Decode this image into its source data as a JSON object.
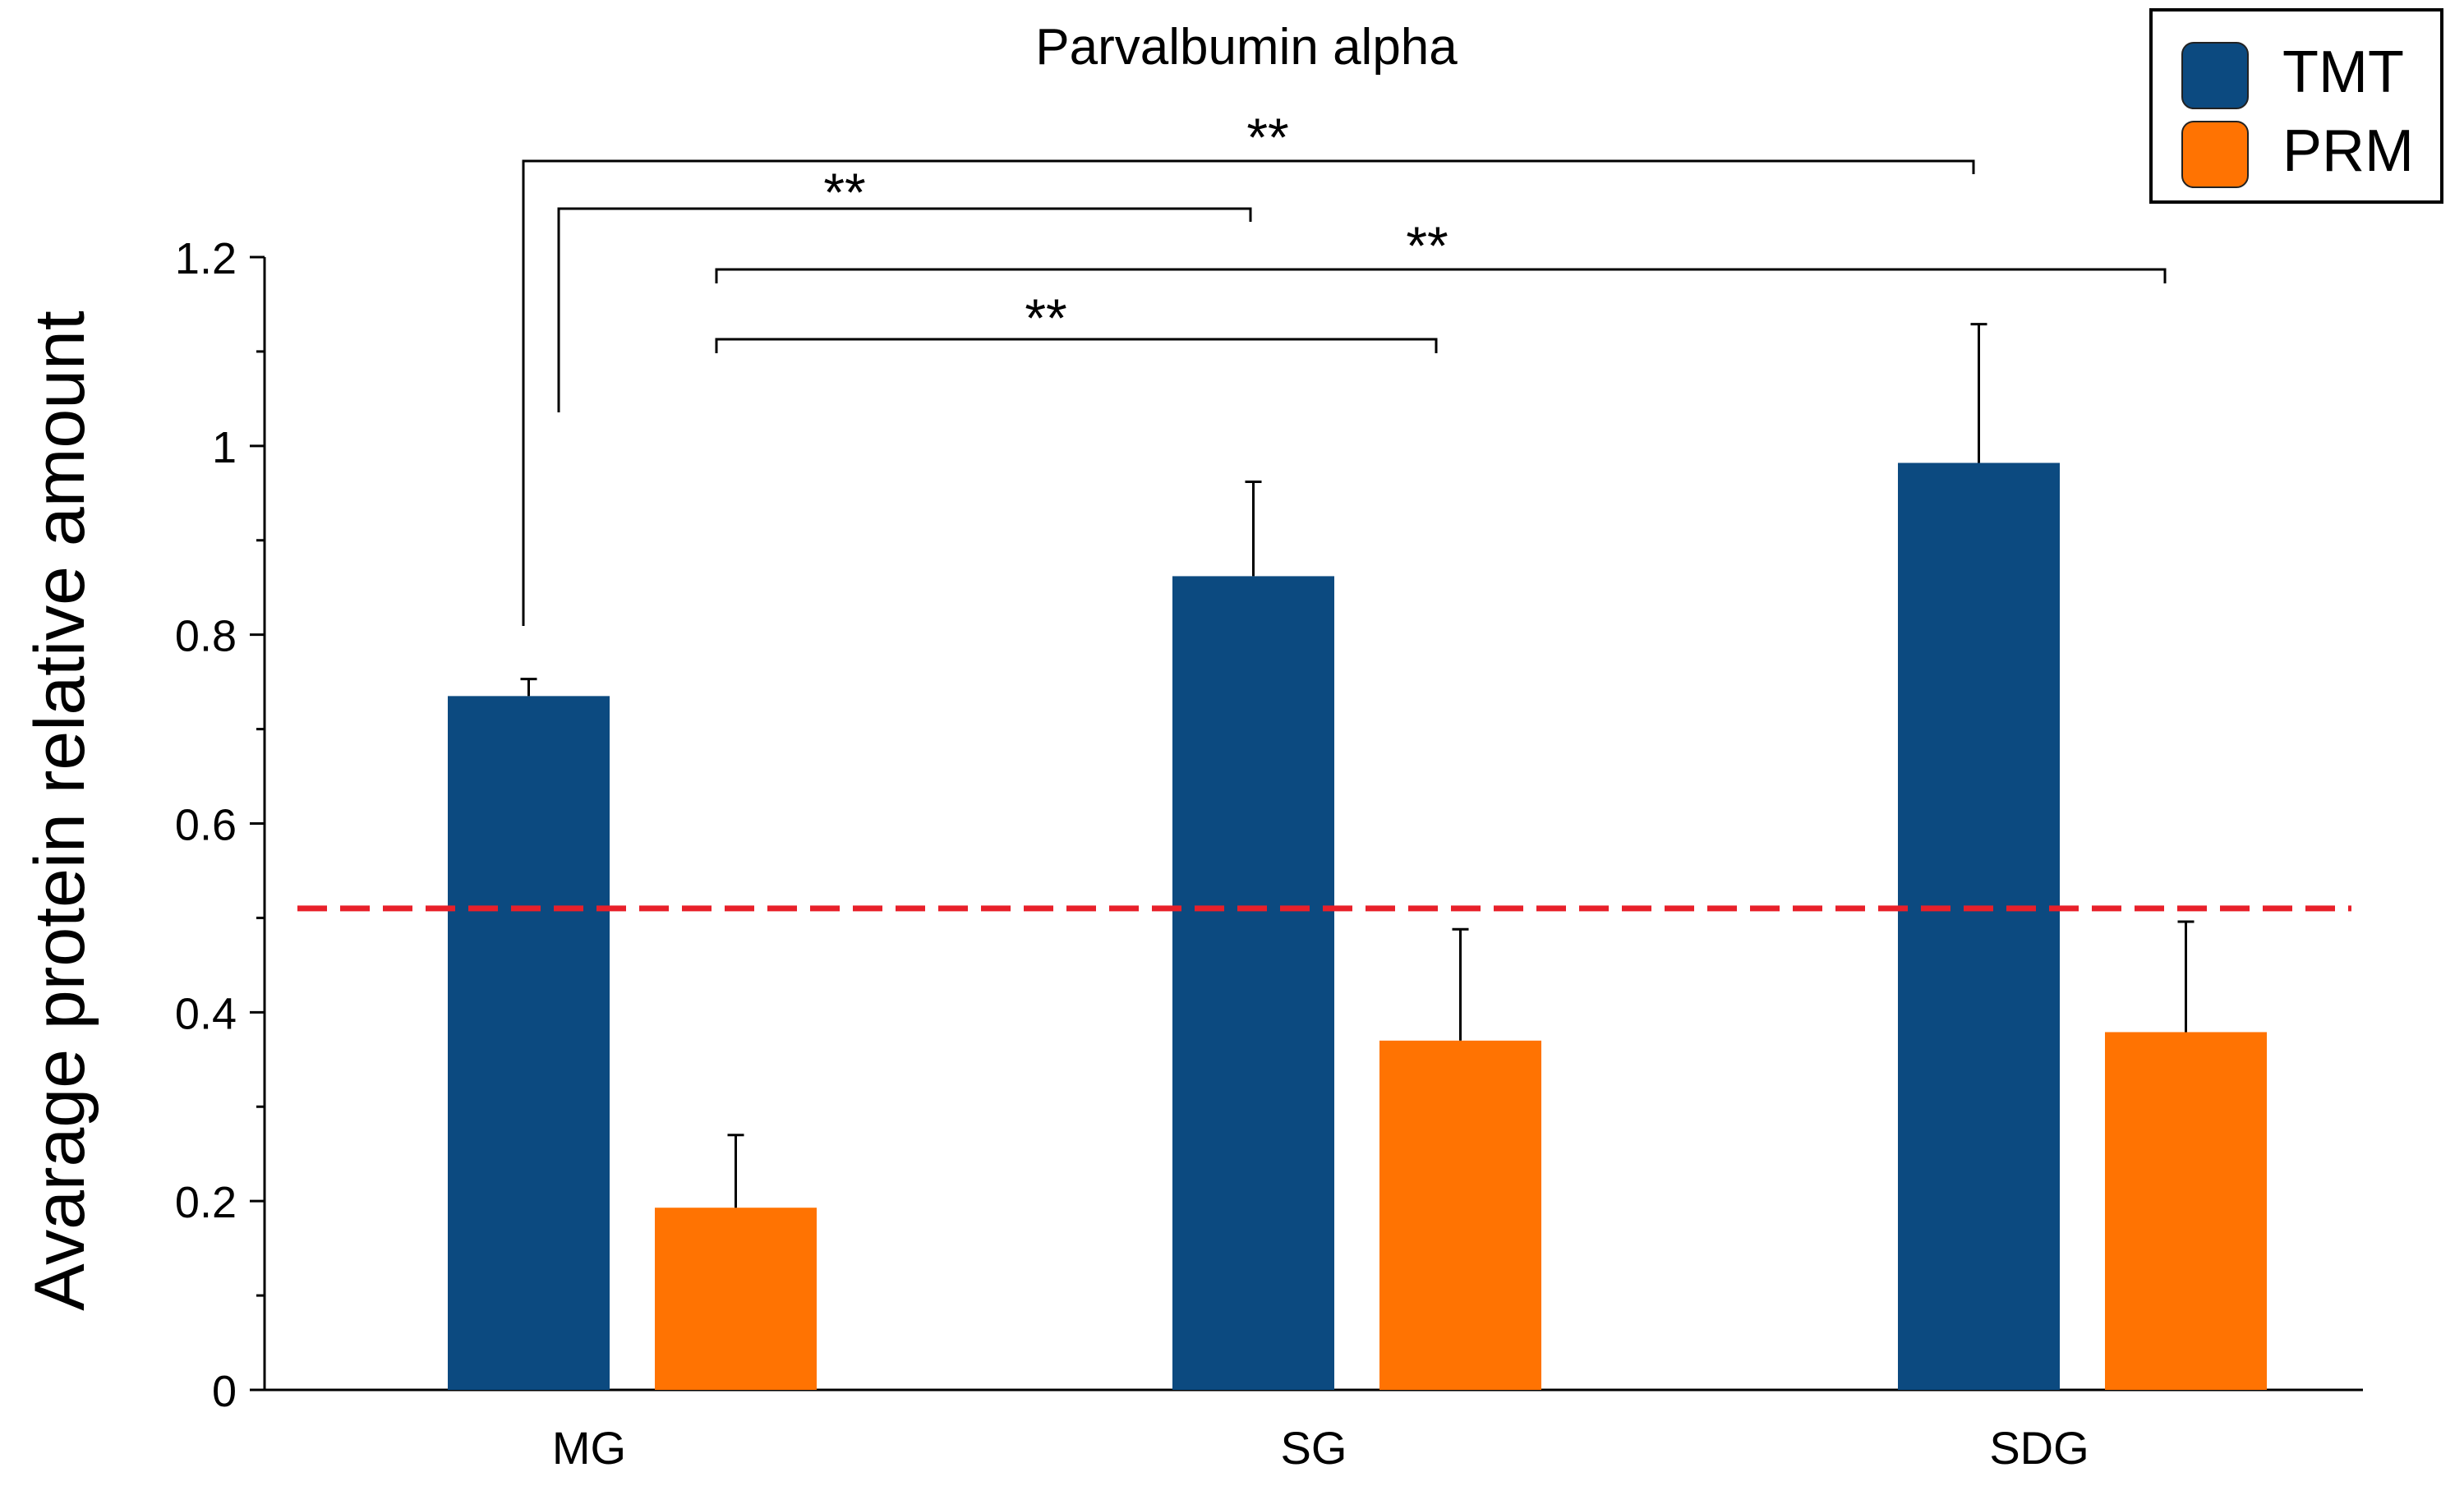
{
  "chart_data": {
    "type": "bar",
    "title": "Parvalbumin alpha",
    "xlabel": "",
    "ylabel": "Avarage protein relative amount",
    "ylim": [
      0,
      1.2
    ],
    "yticks": [
      "0",
      "0.2",
      "0.4",
      "0.6",
      "0.8",
      "1",
      "1.2"
    ],
    "categories": [
      "MG",
      "SG",
      "SDG"
    ],
    "series": [
      {
        "name": "TMT",
        "color": "#0c4a80",
        "values": [
          0.735,
          0.862,
          0.982
        ],
        "errors": [
          0.018,
          0.1,
          0.147
        ]
      },
      {
        "name": "PRM",
        "color": "#ff7302",
        "values": [
          0.193,
          0.37,
          0.379
        ],
        "errors": [
          0.077,
          0.118,
          0.117
        ]
      }
    ],
    "reference_line": {
      "value": 0.51,
      "color": "#e8202a",
      "style": "dashed"
    },
    "legend": {
      "position": "top-right"
    },
    "significance": [
      {
        "label": "**"
      },
      {
        "label": "**"
      },
      {
        "label": "**"
      },
      {
        "label": "**"
      }
    ]
  }
}
